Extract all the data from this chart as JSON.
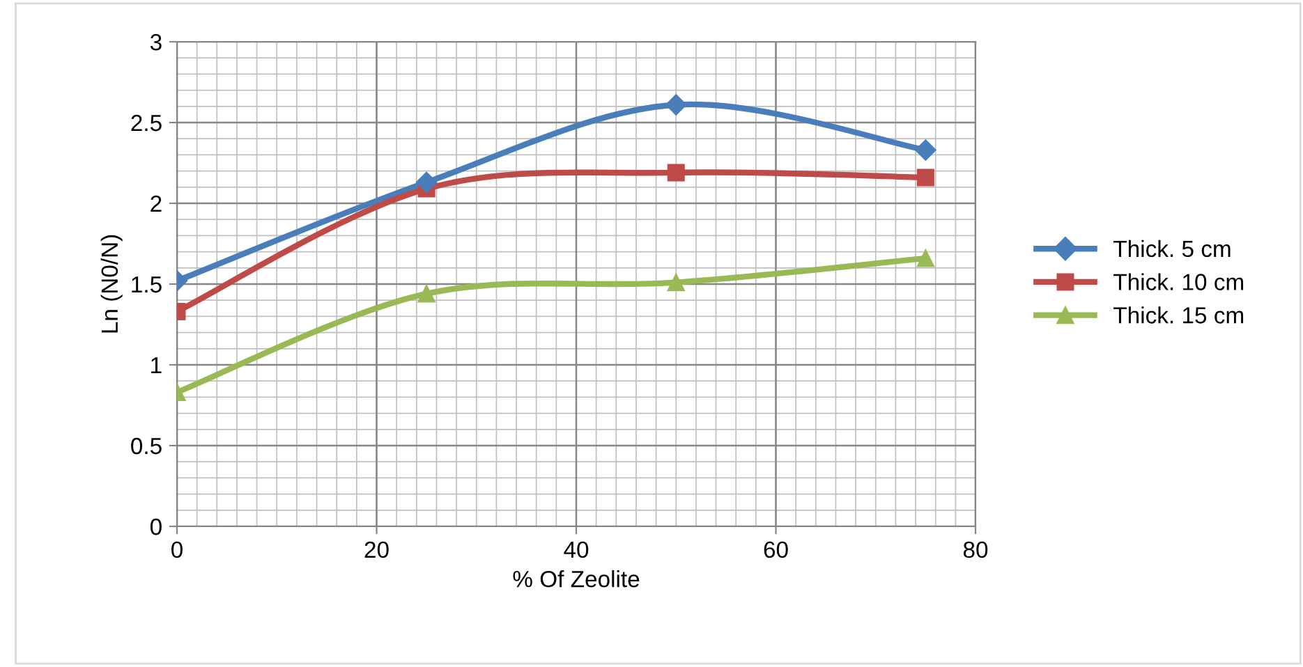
{
  "chart_data": {
    "type": "line",
    "xlabel": "% Of Zeolite",
    "ylabel": "Ln (N0/N)",
    "x": [
      0,
      25,
      50,
      75
    ],
    "series": [
      {
        "name": "Thick. 5 cm",
        "color": "#4a7ebb",
        "values": [
          1.52,
          2.13,
          2.61,
          2.33
        ],
        "marker": "diamond"
      },
      {
        "name": "Thick. 10 cm",
        "color": "#be4b48",
        "values": [
          1.33,
          2.09,
          2.19,
          2.16
        ],
        "marker": "square"
      },
      {
        "name": "Thick. 15 cm",
        "color": "#98b954",
        "values": [
          0.83,
          1.44,
          1.51,
          1.66
        ],
        "marker": "triangle"
      }
    ],
    "xlim": [
      0,
      80
    ],
    "xticks": [
      0,
      20,
      40,
      60,
      80
    ],
    "ylim": [
      0,
      3
    ],
    "yticks": [
      0,
      0.5,
      1,
      1.5,
      2,
      2.5,
      3
    ],
    "grid": true,
    "legend": "right",
    "line_style": "solid"
  }
}
